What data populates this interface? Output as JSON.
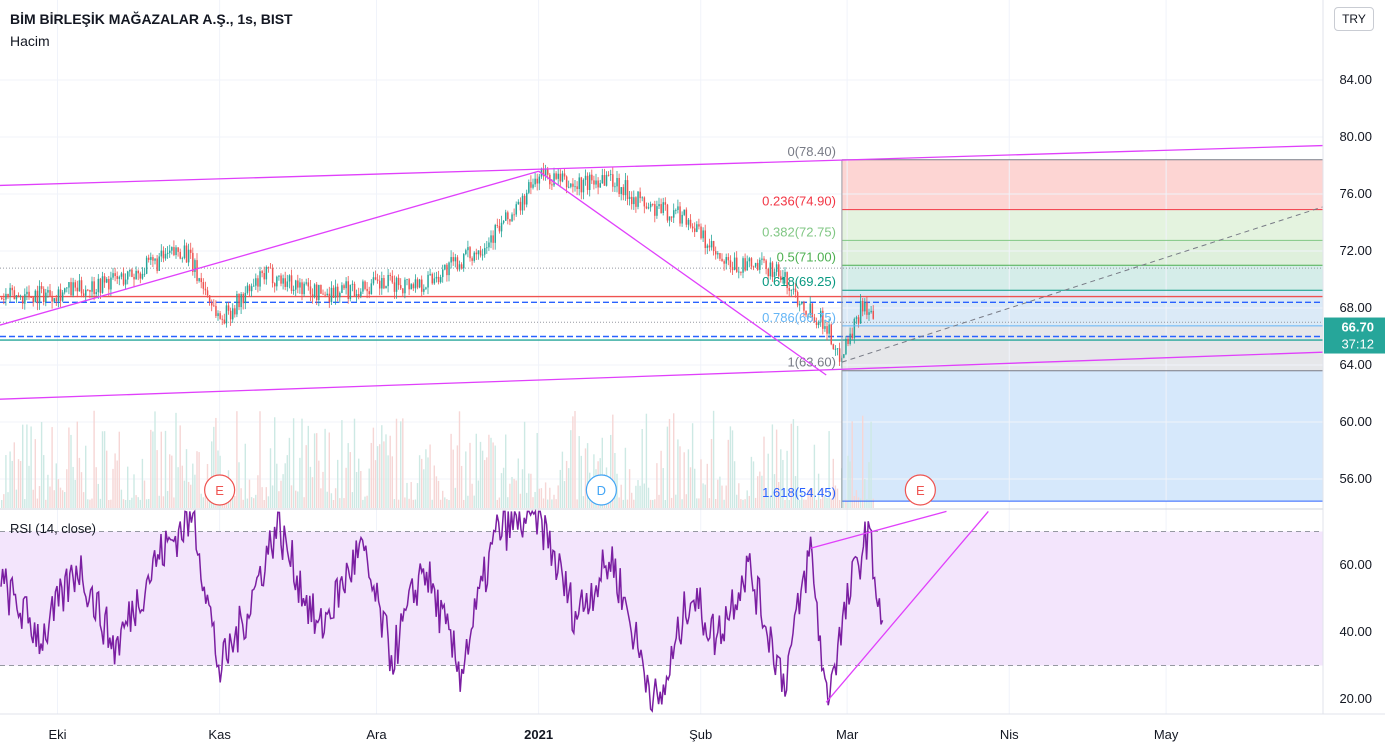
{
  "header": {
    "title": "BİM BİRLEŞİK MAĞAZALAR A.Ş., 1s, BIST",
    "volume_label": "Hacim",
    "currency_button": "TRY"
  },
  "price_tag": {
    "value": "66.70",
    "countdown": "37:12",
    "color": "#26a69a"
  },
  "event_markers": [
    {
      "label": "E",
      "date": "2020-11-01",
      "color": "#ef5350"
    },
    {
      "label": "D",
      "date": "2021-01-13",
      "color": "#42a5f5"
    },
    {
      "label": "E",
      "date": "2021-03-15",
      "color": "#ef5350"
    }
  ],
  "rsi": {
    "label": "RSI (14, close)",
    "upper": 70,
    "lower": 30
  },
  "colors": {
    "up": "#26a69a",
    "down": "#ef5350",
    "trendline": "#e040fb",
    "rsi_line": "#7b1fa2",
    "rsi_band": "#f3e5fc"
  },
  "chart_data": [
    {
      "type": "candlestick",
      "title": "BİM BİRLEŞİK MAĞAZALAR A.Ş., 1s, BIST",
      "x_axis": {
        "type": "date",
        "ticks": [
          "Eki",
          "Kas",
          "Ara",
          "2021",
          "Şub",
          "Mar",
          "Nis",
          "May"
        ],
        "tick_dates": [
          "2020-10-01",
          "2020-11-01",
          "2020-12-01",
          "2021-01-01",
          "2021-02-01",
          "2021-03-01",
          "2021-04-01",
          "2021-05-01"
        ]
      },
      "y_axis": {
        "ticks": [
          "56.00",
          "60.00",
          "64.00",
          "68.00",
          "72.00",
          "76.00",
          "80.00",
          "84.00"
        ],
        "ylim": [
          54,
          86
        ]
      },
      "price_path": [
        {
          "date": "2020-09-20",
          "price": 68.7
        },
        {
          "date": "2020-10-05",
          "price": 69.3
        },
        {
          "date": "2020-10-15",
          "price": 70.3
        },
        {
          "date": "2020-10-25",
          "price": 72.2
        },
        {
          "date": "2020-11-01",
          "price": 67.2
        },
        {
          "date": "2020-11-10",
          "price": 70.4
        },
        {
          "date": "2020-11-20",
          "price": 69.0
        },
        {
          "date": "2020-12-01",
          "price": 69.6
        },
        {
          "date": "2020-12-10",
          "price": 69.8
        },
        {
          "date": "2020-12-20",
          "price": 72.0
        },
        {
          "date": "2020-12-28",
          "price": 75.0
        },
        {
          "date": "2021-01-01",
          "price": 77.4
        },
        {
          "date": "2021-01-08",
          "price": 76.5
        },
        {
          "date": "2021-01-14",
          "price": 77.3
        },
        {
          "date": "2021-01-22",
          "price": 75.0
        },
        {
          "date": "2021-01-29",
          "price": 74.5
        },
        {
          "date": "2021-02-05",
          "price": 71.0
        },
        {
          "date": "2021-02-15",
          "price": 70.8
        },
        {
          "date": "2021-02-20",
          "price": 68.5
        },
        {
          "date": "2021-02-25",
          "price": 66.8
        },
        {
          "date": "2021-02-27",
          "price": 64.5
        },
        {
          "date": "2021-03-02",
          "price": 66.5
        },
        {
          "date": "2021-03-04",
          "price": 68.6
        },
        {
          "date": "2021-03-06",
          "price": 66.7
        }
      ],
      "horizontal_levels": [
        {
          "price": 68.8,
          "color": "#ef5350"
        },
        {
          "price": 68.4,
          "color": "#2962ff"
        },
        {
          "price": 66.0,
          "color": "#2962ff"
        },
        {
          "price": 65.75,
          "color": "#26a69a"
        }
      ],
      "fibonacci": {
        "start_date": "2021-02-28",
        "end_date": "2021-05-31",
        "levels": [
          {
            "label": "0(78.40)",
            "ratio": 0,
            "price": 78.4,
            "color": "#787b86",
            "fill": "#fdd5d3"
          },
          {
            "label": "0.236(74.90)",
            "ratio": 0.236,
            "price": 74.9,
            "color": "#f23645",
            "fill": "#e4f3df"
          },
          {
            "label": "0.382(72.75)",
            "ratio": 0.382,
            "price": 72.75,
            "color": "#81c784",
            "fill": "#dff0dc"
          },
          {
            "label": "0.5(71.00)",
            "ratio": 0.5,
            "price": 71.0,
            "color": "#4caf50",
            "fill": "#d5ede9"
          },
          {
            "label": "0.618(69.25)",
            "ratio": 0.618,
            "price": 69.25,
            "color": "#089981",
            "fill": "#dbeaf7"
          },
          {
            "label": "0.786(66.75)",
            "ratio": 0.786,
            "price": 66.75,
            "color": "#64b5f6",
            "fill": "#e6e7ea"
          },
          {
            "label": "1(63.60)",
            "ratio": 1,
            "price": 63.6,
            "color": "#787b86",
            "fill": "#d6e8fb"
          },
          {
            "label": "1.618(54.45)",
            "ratio": 1.618,
            "price": 54.45,
            "color": "#2962ff",
            "fill": null
          }
        ]
      },
      "trendlines": [
        {
          "from": {
            "date": "2020-09-20",
            "price": 76.6
          },
          "to": {
            "date": "2021-05-31",
            "price": 79.4
          }
        },
        {
          "from": {
            "date": "2020-09-20",
            "price": 61.6
          },
          "to": {
            "date": "2021-05-31",
            "price": 64.9
          }
        },
        {
          "from": {
            "date": "2020-09-20",
            "price": 66.8
          },
          "to": {
            "date": "2021-01-01",
            "price": 77.6
          }
        },
        {
          "from": {
            "date": "2021-01-01",
            "price": 77.6
          },
          "to": {
            "date": "2021-02-25",
            "price": 63.3
          }
        }
      ],
      "projection_dashed": {
        "from": {
          "date": "2021-02-28",
          "price": 64.2
        },
        "to": {
          "date": "2021-05-31",
          "price": 75.1
        }
      }
    },
    {
      "type": "line",
      "title": "RSI (14, close)",
      "y_axis": {
        "ticks": [
          "20.00",
          "40.00",
          "60.00"
        ],
        "ylim": [
          15,
          75
        ]
      },
      "bands": {
        "upper": 70,
        "lower": 30
      },
      "rsi_path": [
        {
          "date": "2020-09-20",
          "value": 55
        },
        {
          "date": "2020-09-28",
          "value": 38
        },
        {
          "date": "2020-10-05",
          "value": 60
        },
        {
          "date": "2020-10-12",
          "value": 35
        },
        {
          "date": "2020-10-20",
          "value": 62
        },
        {
          "date": "2020-10-27",
          "value": 75
        },
        {
          "date": "2020-11-01",
          "value": 28
        },
        {
          "date": "2020-11-06",
          "value": 45
        },
        {
          "date": "2020-11-12",
          "value": 72
        },
        {
          "date": "2020-11-20",
          "value": 40
        },
        {
          "date": "2020-11-28",
          "value": 65
        },
        {
          "date": "2020-12-04",
          "value": 32
        },
        {
          "date": "2020-12-10",
          "value": 60
        },
        {
          "date": "2020-12-17",
          "value": 28
        },
        {
          "date": "2020-12-24",
          "value": 70
        },
        {
          "date": "2021-01-01",
          "value": 75
        },
        {
          "date": "2021-01-08",
          "value": 45
        },
        {
          "date": "2021-01-15",
          "value": 62
        },
        {
          "date": "2021-01-21",
          "value": 30
        },
        {
          "date": "2021-01-24",
          "value": 17
        },
        {
          "date": "2021-01-30",
          "value": 52
        },
        {
          "date": "2021-02-04",
          "value": 38
        },
        {
          "date": "2021-02-10",
          "value": 60
        },
        {
          "date": "2021-02-17",
          "value": 25
        },
        {
          "date": "2021-02-22",
          "value": 65
        },
        {
          "date": "2021-02-25",
          "value": 20
        },
        {
          "date": "2021-03-02",
          "value": 55
        },
        {
          "date": "2021-03-05",
          "value": 70
        },
        {
          "date": "2021-03-08",
          "value": 40
        }
      ],
      "trendlines": [
        {
          "from": {
            "date": "2021-02-22",
            "value": 65
          },
          "to": {
            "date": "2021-03-20",
            "value": 76
          }
        },
        {
          "from": {
            "date": "2021-02-25",
            "value": 19
          },
          "to": {
            "date": "2021-03-28",
            "value": 76
          }
        }
      ]
    }
  ]
}
